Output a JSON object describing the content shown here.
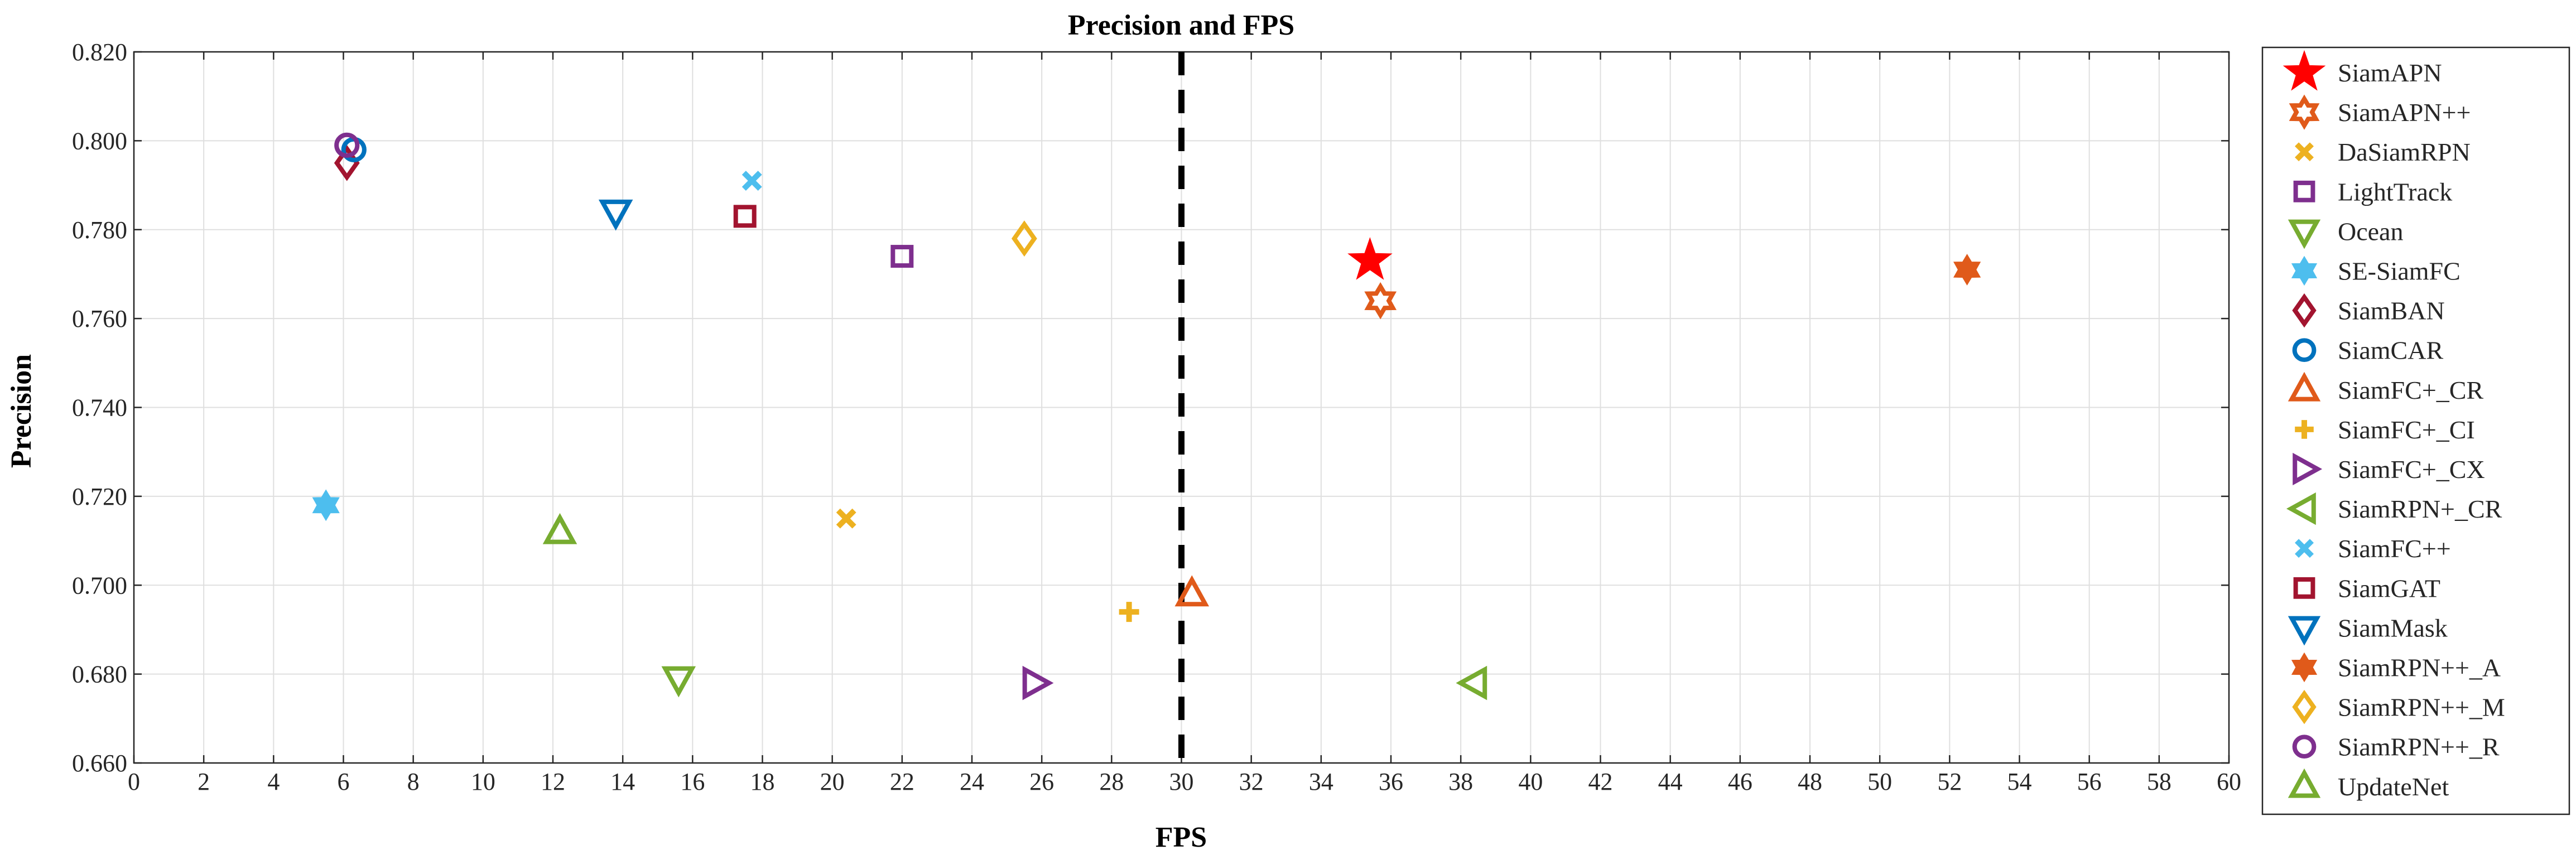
{
  "chart_data": {
    "type": "scatter",
    "title": "Precision and FPS",
    "xlabel": "FPS",
    "ylabel": "Precision",
    "xlim": [
      0,
      60
    ],
    "ylim": [
      0.66,
      0.82
    ],
    "xticks": [
      "0",
      "2",
      "4",
      "6",
      "8",
      "10",
      "12",
      "14",
      "16",
      "18",
      "20",
      "22",
      "24",
      "26",
      "28",
      "30",
      "32",
      "34",
      "36",
      "38",
      "40",
      "42",
      "44",
      "46",
      "48",
      "50",
      "52",
      "54",
      "56",
      "58",
      "60"
    ],
    "yticks": [
      "0.660",
      "0.680",
      "0.700",
      "0.720",
      "0.740",
      "0.760",
      "0.780",
      "0.800",
      "0.820"
    ],
    "grid": true,
    "reference_line": {
      "x": 30,
      "style": "dashed",
      "color": "#000000"
    },
    "legend_position": "outside-right",
    "series": [
      {
        "name": "SiamAPN",
        "marker": "star5",
        "color": "#ff0000",
        "filled": true,
        "x": 35.4,
        "y": 0.773
      },
      {
        "name": "SiamAPN++",
        "marker": "hexagram",
        "color": "#e05a1a",
        "filled": false,
        "x": 35.7,
        "y": 0.764
      },
      {
        "name": "DaSiamRPN",
        "marker": "x",
        "color": "#edb120",
        "filled": true,
        "x": 20.4,
        "y": 0.715
      },
      {
        "name": "LightTrack",
        "marker": "square",
        "color": "#7e2f8e",
        "filled": false,
        "x": 22.0,
        "y": 0.774
      },
      {
        "name": "Ocean",
        "marker": "triangle-down",
        "color": "#77ac30",
        "filled": false,
        "x": 15.6,
        "y": 0.679
      },
      {
        "name": "SE-SiamFC",
        "marker": "hexagram",
        "color": "#4dbeee",
        "filled": true,
        "x": 5.5,
        "y": 0.718
      },
      {
        "name": "SiamBAN",
        "marker": "diamond",
        "color": "#a2142f",
        "filled": false,
        "x": 6.1,
        "y": 0.795
      },
      {
        "name": "SiamCAR",
        "marker": "circle",
        "color": "#0072bd",
        "filled": false,
        "x": 6.3,
        "y": 0.798
      },
      {
        "name": "SiamFC+_CR",
        "marker": "triangle-up",
        "color": "#e05a1a",
        "filled": false,
        "x": 30.3,
        "y": 0.698
      },
      {
        "name": "SiamFC+_CI",
        "marker": "plus",
        "color": "#edb120",
        "filled": true,
        "x": 28.5,
        "y": 0.694
      },
      {
        "name": "SiamFC+_CX",
        "marker": "triangle-right",
        "color": "#7e2f8e",
        "filled": false,
        "x": 25.8,
        "y": 0.678
      },
      {
        "name": "SiamRPN+_CR",
        "marker": "triangle-left",
        "color": "#77ac30",
        "filled": false,
        "x": 38.4,
        "y": 0.678
      },
      {
        "name": "SiamFC++",
        "marker": "x",
        "color": "#4dbeee",
        "filled": true,
        "x": 17.7,
        "y": 0.791
      },
      {
        "name": "SiamGAT",
        "marker": "square",
        "color": "#a2142f",
        "filled": false,
        "x": 17.5,
        "y": 0.783
      },
      {
        "name": "SiamMask",
        "marker": "triangle-down",
        "color": "#0072bd",
        "filled": false,
        "x": 13.8,
        "y": 0.784
      },
      {
        "name": "SiamRPN++_A",
        "marker": "hexagram",
        "color": "#e05a1a",
        "filled": true,
        "x": 52.5,
        "y": 0.771
      },
      {
        "name": "SiamRPN++_M",
        "marker": "diamond",
        "color": "#edb120",
        "filled": false,
        "x": 25.5,
        "y": 0.778
      },
      {
        "name": "SiamRPN++_R",
        "marker": "circle",
        "color": "#7e2f8e",
        "filled": false,
        "x": 6.1,
        "y": 0.799
      },
      {
        "name": "UpdateNet",
        "marker": "triangle-up",
        "color": "#77ac30",
        "filled": false,
        "x": 12.2,
        "y": 0.712
      }
    ]
  }
}
